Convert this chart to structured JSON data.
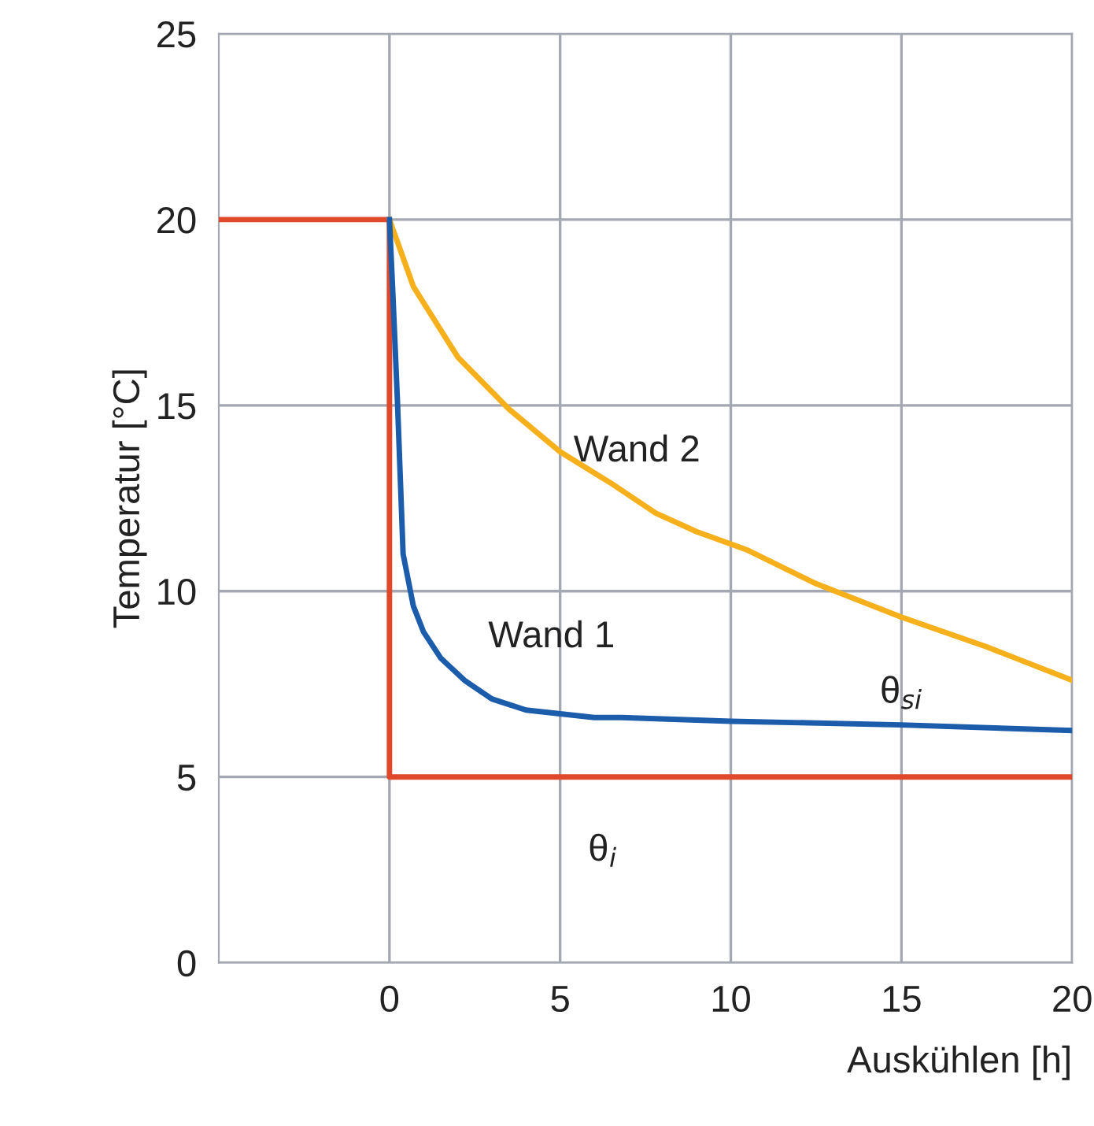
{
  "chart_data": {
    "type": "line",
    "xlabel": "Auskühlen [h]",
    "ylabel": "Temperatur [°C]",
    "xlim": [
      -5,
      20
    ],
    "xticks": [
      0,
      5,
      10,
      15,
      20
    ],
    "ylim": [
      0,
      25
    ],
    "yticks": [
      0,
      5,
      10,
      15,
      20,
      25
    ],
    "grid": true,
    "line_style": "solid",
    "marker": "none",
    "series": [
      {
        "name": "θ$_{i}$",
        "color": "#e0482c",
        "x": [
          -5,
          0,
          0,
          20
        ],
        "values": [
          20,
          20,
          5,
          5
        ]
      },
      {
        "name": "Wand 2",
        "color": "#f5b01c",
        "x": [
          0,
          0.7,
          2,
          3.5,
          5,
          6.5,
          7.8,
          9,
          10.5,
          12.5,
          15,
          17.5,
          20
        ],
        "values": [
          20,
          18.2,
          16.3,
          14.9,
          13.75,
          12.9,
          12.1,
          11.6,
          11.1,
          10.2,
          9.3,
          8.5,
          7.6
        ]
      },
      {
        "name": "Wand 1",
        "color": "#1b5cab",
        "x": [
          0,
          0.1,
          0.23,
          0.4,
          0.7,
          1,
          1.5,
          2.2,
          3,
          4,
          5,
          6,
          6.8,
          10,
          15,
          20
        ],
        "values": [
          20,
          18,
          15.2,
          11.0,
          9.6,
          8.9,
          8.2,
          7.6,
          7.1,
          6.8,
          6.7,
          6.6,
          6.6,
          6.5,
          6.4,
          6.25
        ]
      }
    ],
    "annotations": [
      "θ$_{si}$"
    ]
  }
}
